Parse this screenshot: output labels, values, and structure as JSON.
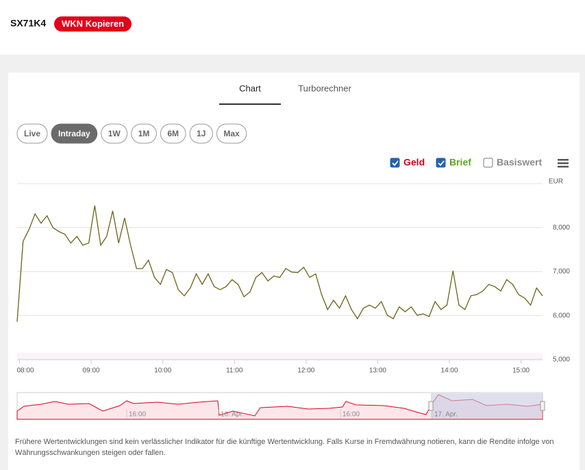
{
  "header": {
    "code": "SX71K4",
    "button": "WKN Kopieren"
  },
  "tabs": [
    "Chart",
    "Turborechner"
  ],
  "active_tab": 0,
  "ranges": [
    "Live",
    "Intraday",
    "1W",
    "1M",
    "6M",
    "1J",
    "Max"
  ],
  "active_range": 1,
  "legend": [
    {
      "label": "Geld",
      "color": "#d6001c",
      "checked": true
    },
    {
      "label": "Brief",
      "color": "#5ba71b",
      "checked": true
    },
    {
      "label": "Basiswert",
      "color": "#8a8a8a",
      "checked": false
    }
  ],
  "chart_data": {
    "type": "line",
    "unit": "EUR",
    "x": [
      "07:58",
      "08:03",
      "08:08",
      "08:13",
      "08:18",
      "08:23",
      "08:28",
      "08:33",
      "08:38",
      "08:43",
      "08:48",
      "08:53",
      "08:58",
      "09:03",
      "09:08",
      "09:13",
      "09:18",
      "09:23",
      "09:28",
      "09:33",
      "09:38",
      "09:43",
      "09:48",
      "09:53",
      "09:58",
      "10:03",
      "10:08",
      "10:13",
      "10:18",
      "10:23",
      "10:28",
      "10:33",
      "10:38",
      "10:43",
      "10:48",
      "10:53",
      "10:58",
      "11:03",
      "11:08",
      "11:13",
      "11:18",
      "11:23",
      "11:28",
      "11:33",
      "11:38",
      "11:43",
      "11:48",
      "11:53",
      "11:58",
      "12:03",
      "12:08",
      "12:13",
      "12:18",
      "12:23",
      "12:28",
      "12:33",
      "12:38",
      "12:43",
      "12:48",
      "12:53",
      "12:58",
      "13:03",
      "13:08",
      "13:13",
      "13:18",
      "13:23",
      "13:28",
      "13:33",
      "13:38",
      "13:43",
      "13:48",
      "13:53",
      "13:58",
      "14:03",
      "14:08",
      "14:13",
      "14:18",
      "14:23",
      "14:28",
      "14:33",
      "14:38",
      "14:43",
      "14:48",
      "14:53",
      "14:58",
      "15:03",
      "15:08",
      "15:13",
      "15:18"
    ],
    "series": [
      {
        "color": "#6b6216",
        "values": [
          5860,
          7690,
          7960,
          8310,
          8100,
          8270,
          8000,
          7910,
          7850,
          7650,
          7800,
          7600,
          7650,
          8500,
          7600,
          7800,
          8380,
          7650,
          8220,
          7600,
          7070,
          7070,
          7260,
          6870,
          6710,
          7050,
          6980,
          6590,
          6450,
          6630,
          6950,
          6710,
          6950,
          6660,
          6590,
          6660,
          6820,
          6710,
          6430,
          6540,
          6870,
          6980,
          6790,
          6900,
          6870,
          7070,
          6990,
          6980,
          7100,
          6870,
          6950,
          6480,
          6140,
          6350,
          6170,
          6450,
          6140,
          5930,
          6170,
          6240,
          6170,
          6320,
          6010,
          5930,
          6200,
          6090,
          6200,
          6010,
          6040,
          5980,
          6320,
          6140,
          6240,
          7020,
          6240,
          6140,
          6450,
          6480,
          6560,
          6710,
          6660,
          6560,
          6820,
          6710,
          6480,
          6400,
          6240,
          6630,
          6450
        ]
      }
    ],
    "xlim": [
      "07:58",
      "15:18"
    ],
    "xticks": [
      "08:00",
      "09:00",
      "10:00",
      "11:00",
      "12:00",
      "13:00",
      "14:00",
      "15:00"
    ],
    "ylim": [
      5000,
      9000
    ],
    "yticks": [
      {
        "value": 5000,
        "label": "5,000"
      },
      {
        "value": 6000,
        "label": "6,000"
      },
      {
        "value": 7000,
        "label": "7,000"
      },
      {
        "value": 8000,
        "label": "8,000"
      }
    ],
    "grid": true
  },
  "navigator_labels": [
    "16:00",
    "16. Apr.",
    "16:00",
    "17. Apr."
  ],
  "disclaimer": "Frühere Wertentwicklungen sind kein verlässlicher Indikator für die künftige Wertentwicklung. Falls Kurse in Fremdwährung notieren, kann die Rendite infolge von Währungsschwankungen steigen oder fallen."
}
